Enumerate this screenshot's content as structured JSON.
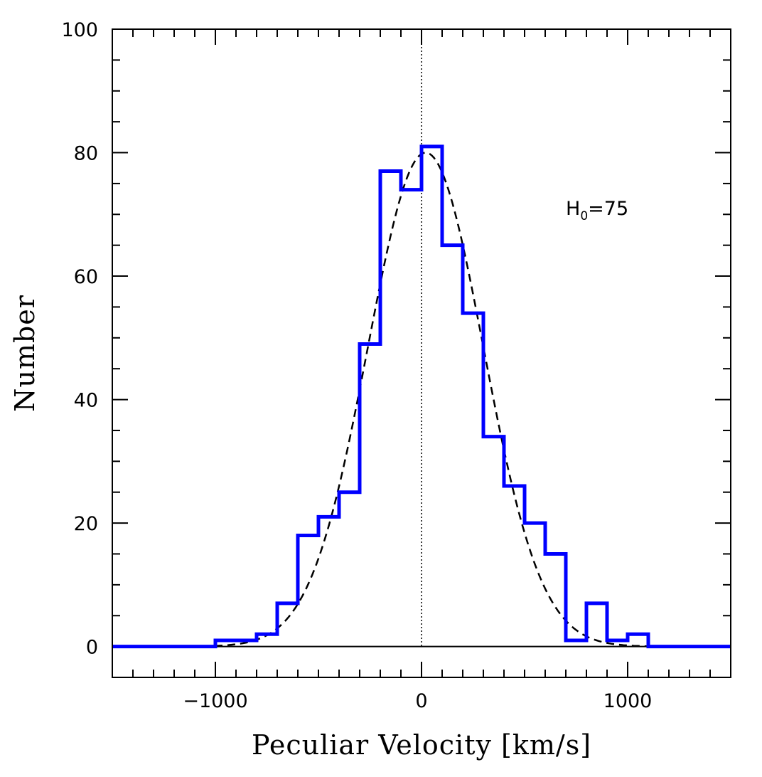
{
  "chart_data": {
    "type": "histogram",
    "xlabel": "Peculiar Velocity [km/s]",
    "ylabel": "Number",
    "xlim": [
      -1500,
      1500
    ],
    "ylim": [
      -5,
      100
    ],
    "xticks": [
      -1000,
      0,
      1000
    ],
    "xtick_labels": [
      "−1000",
      "0",
      "1000"
    ],
    "yticks": [
      0,
      20,
      40,
      60,
      80,
      100
    ],
    "ytick_labels": [
      "0",
      "20",
      "40",
      "60",
      "80",
      "100"
    ],
    "x_minor_step": 100,
    "y_minor_step": 5,
    "grid": false,
    "bin_width": 100,
    "histogram": {
      "color": "#0000ff",
      "bins_start": [
        -1500,
        -1400,
        -1300,
        -1200,
        -1100,
        -1000,
        -900,
        -800,
        -700,
        -600,
        -500,
        -400,
        -300,
        -200,
        -100,
        0,
        100,
        200,
        300,
        400,
        500,
        600,
        700,
        800,
        900,
        1000,
        1100,
        1200,
        1300,
        1400
      ],
      "counts": [
        0,
        0,
        0,
        0,
        0,
        1,
        1,
        2,
        7,
        18,
        21,
        25,
        49,
        77,
        74,
        81,
        65,
        54,
        34,
        26,
        20,
        15,
        1,
        7,
        1,
        2,
        0,
        0,
        0,
        0
      ]
    },
    "gaussian_fit": {
      "style": "dashed",
      "color": "#000000",
      "amplitude": 80,
      "mean": 20,
      "sigma": 280
    },
    "zero_line_y": 0,
    "center_line_x": 0,
    "annotation": {
      "main": "H",
      "sub": "0",
      "rest": "=75"
    }
  }
}
